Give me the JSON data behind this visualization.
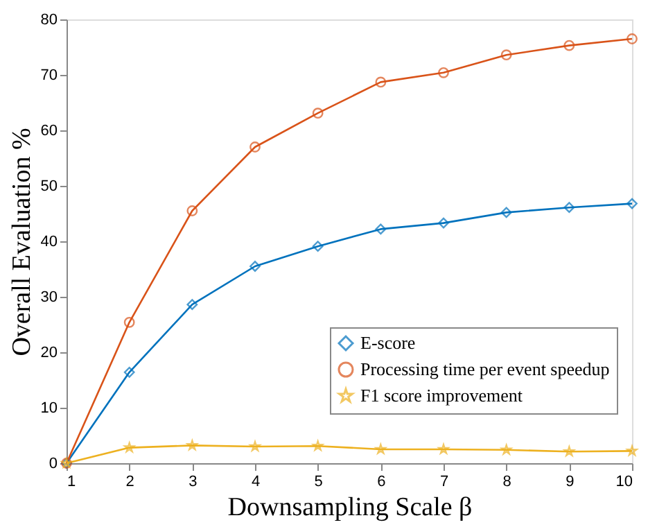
{
  "chart_data": {
    "type": "line",
    "xlabel": "Downsampling Scale β",
    "ylabel": "Overall Evaluation %",
    "x": [
      1,
      2,
      3,
      4,
      5,
      6,
      7,
      8,
      9,
      10
    ],
    "series": [
      {
        "name": "E-score",
        "color": "#0072bd",
        "marker": "diamond",
        "values": [
          0,
          16.4,
          28.6,
          35.5,
          39.1,
          42.2,
          43.3,
          45.2,
          46.1,
          46.8
        ]
      },
      {
        "name": "Processing time per event speedup",
        "color": "#d95319",
        "marker": "circle",
        "values": [
          0,
          25.4,
          45.5,
          57.0,
          63.1,
          68.7,
          70.4,
          73.6,
          75.3,
          76.5
        ]
      },
      {
        "name": "F1 score improvement",
        "color": "#edb120",
        "marker": "star",
        "values": [
          0,
          2.8,
          3.2,
          3.0,
          3.1,
          2.5,
          2.5,
          2.4,
          2.1,
          2.2
        ]
      }
    ],
    "xlim": [
      1,
      10
    ],
    "xticks": [
      1,
      2,
      3,
      4,
      5,
      6,
      7,
      8,
      9,
      10
    ],
    "ylim": [
      0,
      80
    ],
    "yticks": [
      0,
      10,
      20,
      30,
      40,
      50,
      60,
      70,
      80
    ],
    "grid": false,
    "legend": "bottom right",
    "line_style": "solid"
  }
}
